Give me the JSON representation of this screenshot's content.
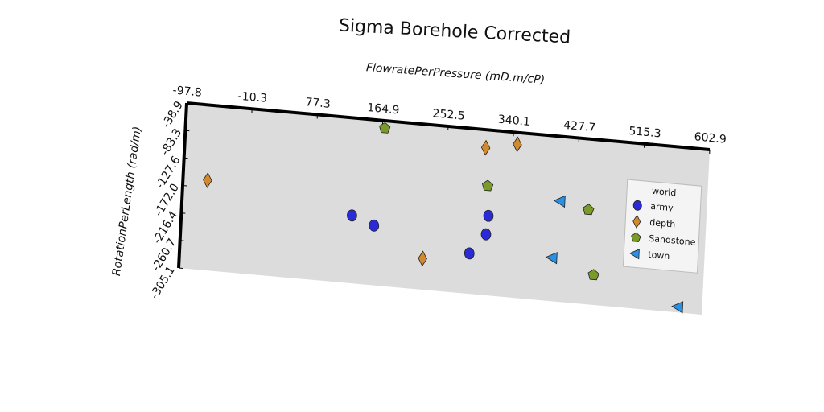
{
  "chart_data": {
    "type": "scatter",
    "title": "Sigma Borehole Corrected",
    "x_label": "FlowratePerPressure (mD.m/cP)",
    "y_label": "RotationPerLength (rad/m)",
    "xlim": [
      -97.8,
      602.9
    ],
    "ylim": [
      -305.1,
      -38.9
    ],
    "xticks": [
      -97.8,
      -10.3,
      77.3,
      164.9,
      252.5,
      340.1,
      427.7,
      515.3,
      602.9
    ],
    "yticks": [
      -38.9,
      -83.3,
      -127.6,
      {
        "value": -172,
        "label": "-172.0"
      },
      -216.4,
      -260.7,
      -305.1
    ],
    "legend_title": "world",
    "legend": "upper right",
    "series": [
      {
        "name": "army",
        "color": "#2a2ad6",
        "marker": "circle",
        "x": [
          130,
          160,
          312,
          310,
          289
        ],
        "values": [
          -196,
          -209,
          -177,
          -207,
          -240
        ]
      },
      {
        "name": "depth",
        "color": "#d18a2f",
        "marker": "diamond",
        "x": [
          -65,
          304,
          346,
          227
        ],
        "values": [
          -160,
          -68,
          -58,
          -255
        ]
      },
      {
        "name": "Sandstone",
        "color": "#7a9b2a",
        "marker": "pentagon",
        "x": [
          168,
          309,
          445,
          456
        ],
        "values": [
          -51,
          -129,
          -153,
          -257
        ]
      },
      {
        "name": "town",
        "color": "#2b8fe3",
        "marker": "triangle-left",
        "x": [
          407,
          400,
          571,
          571
        ],
        "values": [
          -143,
          -235,
          -220,
          -296
        ]
      }
    ]
  }
}
